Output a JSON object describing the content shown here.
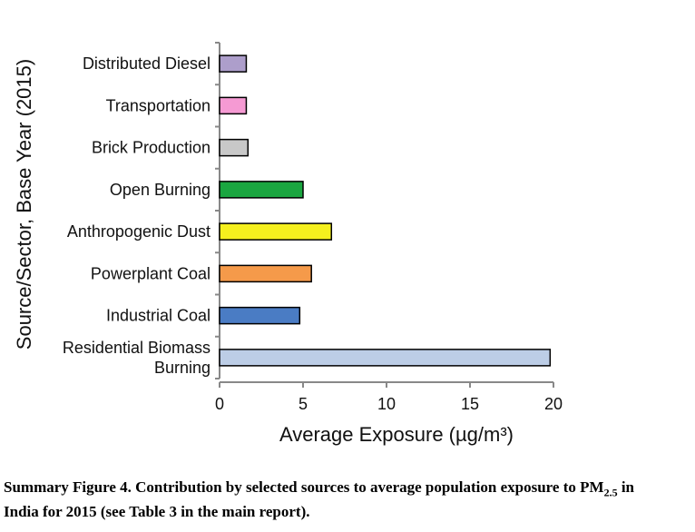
{
  "chart_data": {
    "type": "hbar",
    "categories": [
      "Distributed Diesel",
      "Transportation",
      "Brick Production",
      "Open Burning",
      "Anthropogenic Dust",
      "Powerplant Coal",
      "Industrial Coal",
      "Residential Biomass\nBurning"
    ],
    "values": [
      1.6,
      1.6,
      1.7,
      5.0,
      6.7,
      5.5,
      4.8,
      19.8
    ],
    "colors": [
      "#ad9ecb",
      "#f59ad3",
      "#c8c8c8",
      "#1aa640",
      "#f5f01e",
      "#f59a4a",
      "#4a7cc4",
      "#bccde6"
    ],
    "xlim": [
      0,
      20
    ],
    "xticks": [
      0,
      5,
      10,
      15,
      20
    ],
    "xlabel": "Average Exposure (µg/m³)",
    "ylabel": "Source/Sector, Base Year (2015)"
  },
  "caption": {
    "before": "Summary Figure 4.  Contribution by selected sources to average population exposure to PM",
    "subscript": "2.5",
    "after": " in India for 2015 (see Table 3 in the main report)."
  }
}
